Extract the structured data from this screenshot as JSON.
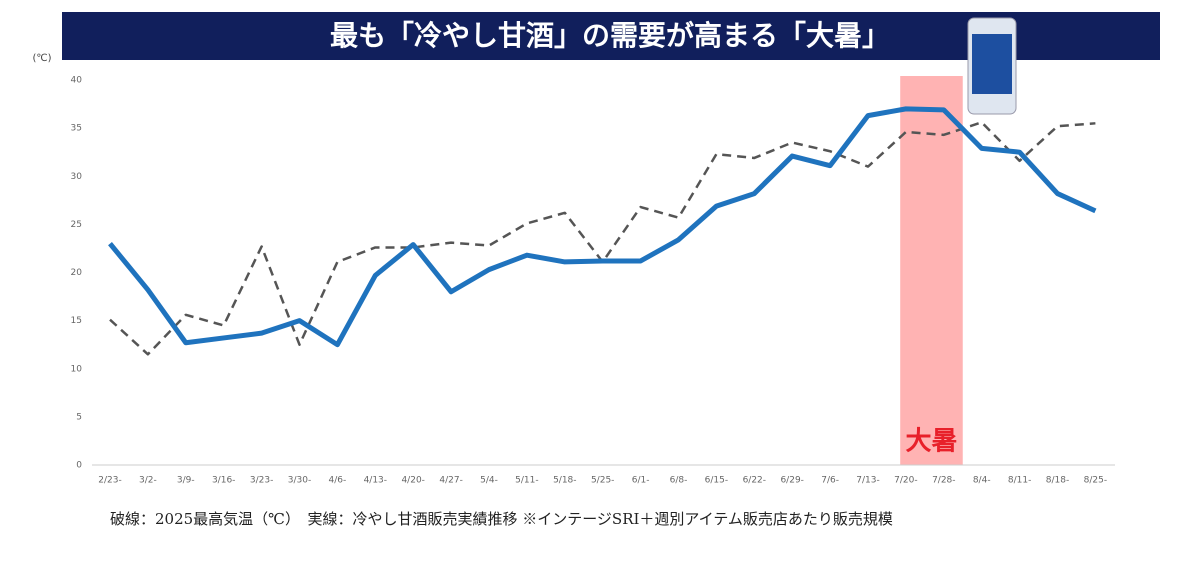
{
  "chart_data": {
    "type": "line",
    "title": "最も「冷やし甘酒」の需要が高まる「大暑」",
    "y_unit": "(℃)",
    "categories": [
      "2/23-",
      "3/2-",
      "3/9-",
      "3/16-",
      "3/23-",
      "3/30-",
      "4/6-",
      "4/13-",
      "4/20-",
      "4/27-",
      "5/4-",
      "5/11-",
      "5/18-",
      "5/25-",
      "6/1-",
      "6/8-",
      "6/15-",
      "6/22-",
      "6/29-",
      "7/6-",
      "7/13-",
      "7/20-",
      "7/28-",
      "8/4-",
      "8/11-",
      "8/18-",
      "8/25-"
    ],
    "series": [
      {
        "color": "#1f73be",
        "dashed": false,
        "values": [
          23,
          18.2,
          12.7,
          13.2,
          13.7,
          15.0,
          12.5,
          19.7,
          22.9,
          18.0,
          20.3,
          21.8,
          21.1,
          21.2,
          21.2,
          23.4,
          26.9,
          28.2,
          32.1,
          31.1,
          36.3,
          37.0,
          36.9,
          32.9,
          32.5,
          28.2,
          26.4
        ]
      },
      {
        "color": "#555555",
        "dashed": true,
        "values": [
          15.1,
          11.5,
          15.6,
          14.5,
          22.7,
          12.5,
          21.1,
          22.6,
          22.6,
          23.1,
          22.8,
          25.1,
          26.2,
          21.1,
          26.8,
          25.7,
          32.3,
          31.9,
          33.5,
          32.6,
          31.0,
          34.6,
          34.3,
          35.6,
          31.6,
          35.2,
          35.5
        ]
      }
    ],
    "highlight": {
      "label": "大暑",
      "from": "7/20-",
      "to": "7/28-",
      "color": "#ffb3b3"
    },
    "ylim": [
      0,
      40
    ],
    "yticks": [
      0,
      5,
      10,
      15,
      20,
      25,
      30,
      35,
      40
    ],
    "grid": false,
    "note": "破線：2025最高気温（℃）　実線：冷やし甘酒販売実績推移 ※インテージSRI＋週別アイテム販売店あたり販売規模"
  }
}
